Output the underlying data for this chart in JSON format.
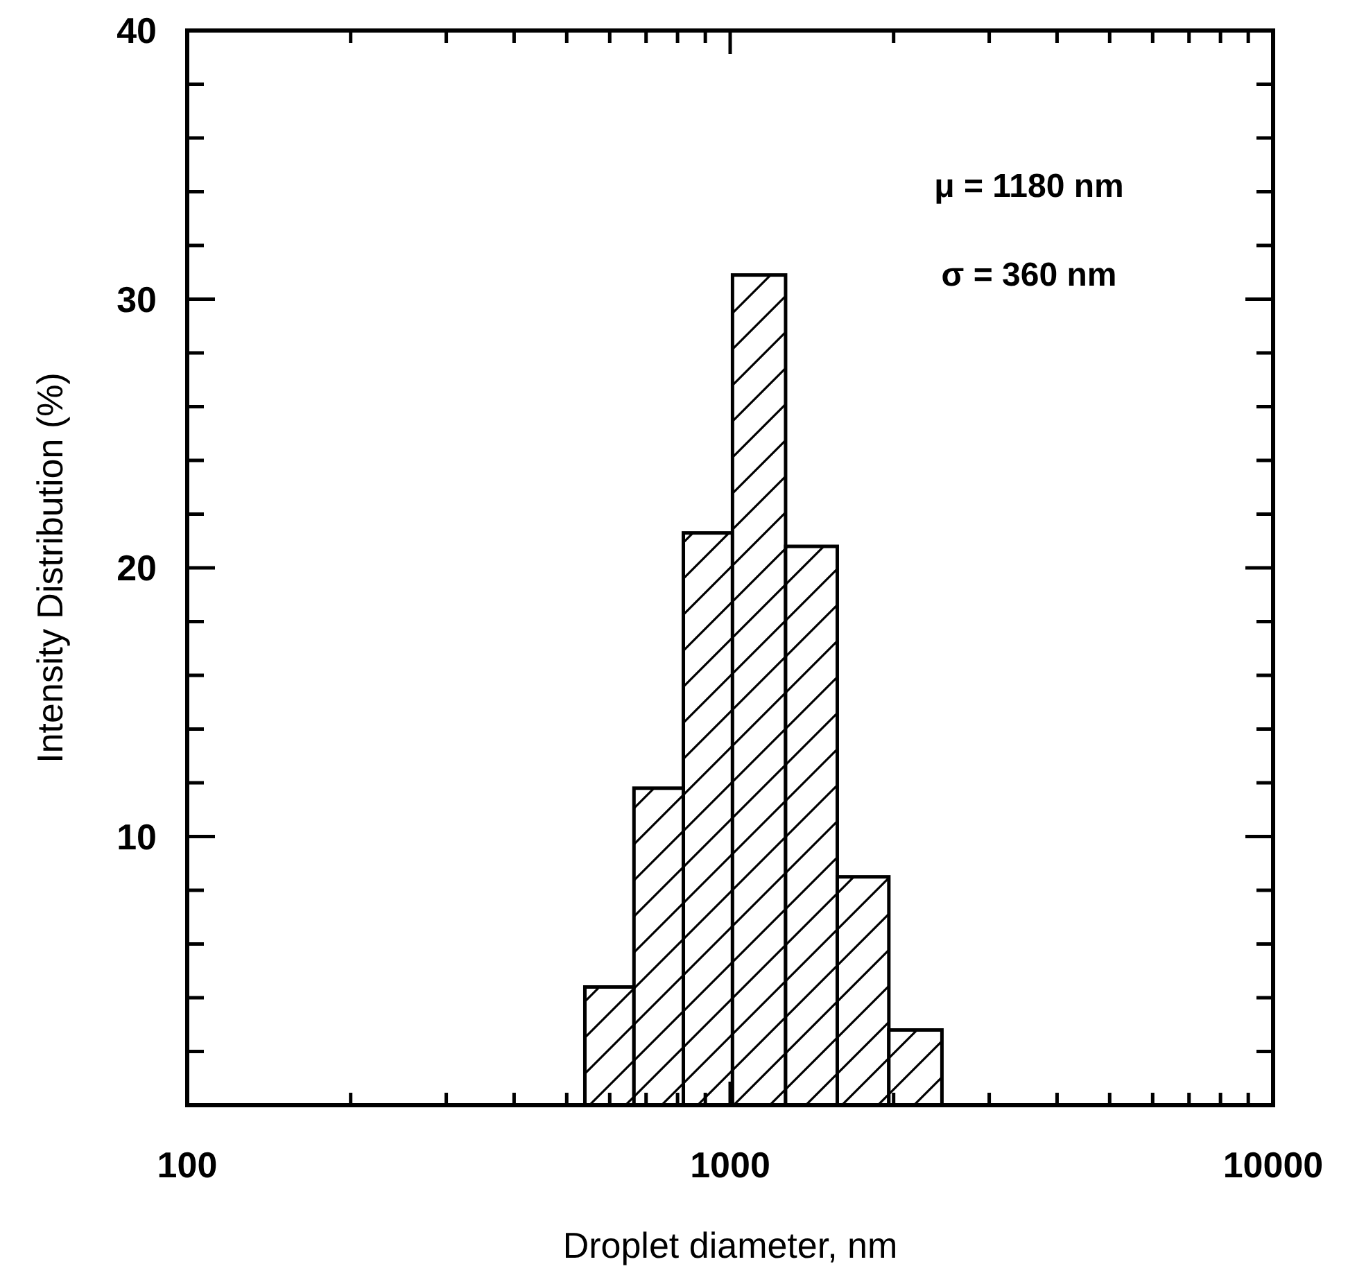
{
  "chart_data": {
    "type": "histogram",
    "xlabel": "Droplet diameter, nm",
    "ylabel": "Intensity Distribution (%)",
    "bins": [
      540,
      665,
      820,
      1010,
      1265,
      1575,
      1960,
      2455
    ],
    "values": [
      4.4,
      11.8,
      21.3,
      30.9,
      20.8,
      8.5,
      2.8
    ],
    "log": "x",
    "xlim": [
      100,
      10000
    ],
    "xticks": [
      100,
      {
        "value": 200,
        "label": null
      },
      {
        "value": 300,
        "label": null
      },
      {
        "value": 400,
        "label": null
      },
      {
        "value": 500,
        "label": null
      },
      {
        "value": 600,
        "label": null
      },
      {
        "value": 700,
        "label": null
      },
      {
        "value": 800,
        "label": null
      },
      {
        "value": 900,
        "label": null
      },
      1000,
      {
        "value": 2000,
        "label": null
      },
      {
        "value": 3000,
        "label": null
      },
      {
        "value": 4000,
        "label": null
      },
      {
        "value": 5000,
        "label": null
      },
      {
        "value": 6000,
        "label": null
      },
      {
        "value": 7000,
        "label": null
      },
      {
        "value": 8000,
        "label": null
      },
      {
        "value": 9000,
        "label": null
      },
      10000
    ],
    "ylim": [
      0,
      40
    ],
    "yticks": [
      {
        "value": 2,
        "label": null
      },
      {
        "value": 4,
        "label": null
      },
      {
        "value": 6,
        "label": null
      },
      {
        "value": 8,
        "label": null
      },
      10,
      {
        "value": 12,
        "label": null
      },
      {
        "value": 14,
        "label": null
      },
      {
        "value": 16,
        "label": null
      },
      {
        "value": 18,
        "label": null
      },
      20,
      {
        "value": 22,
        "label": null
      },
      {
        "value": 24,
        "label": null
      },
      {
        "value": 26,
        "label": null
      },
      {
        "value": 28,
        "label": null
      },
      30,
      {
        "value": 32,
        "label": null
      },
      {
        "value": 34,
        "label": null
      },
      {
        "value": 36,
        "label": null
      },
      {
        "value": 38,
        "label": null
      },
      40
    ],
    "annotations": [
      "μ = 1180 nm",
      "σ = 360 nm"
    ]
  }
}
